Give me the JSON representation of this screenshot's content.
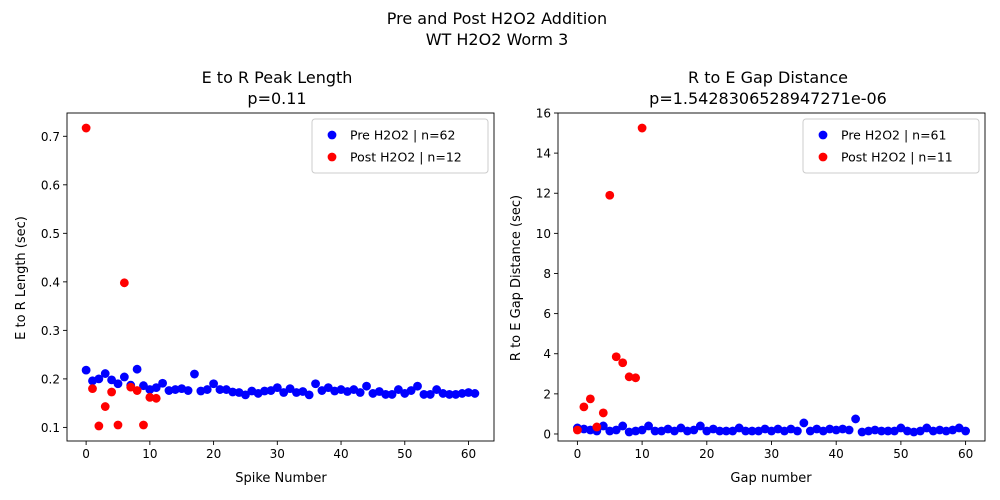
{
  "figure": {
    "suptitle_line1": "Pre and Post H2O2 Addition",
    "suptitle_line2": "WT H2O2 Worm 3"
  },
  "chart_data": [
    {
      "type": "scatter",
      "title_line1": "E to R Peak Length",
      "title_line2": "p=0.11",
      "xlabel": "Spike Number",
      "ylabel": "E to R Length (sec)",
      "xlim": [
        -3,
        64
      ],
      "ylim": [
        0.072,
        0.748
      ],
      "xticks": [
        0,
        10,
        20,
        30,
        40,
        50,
        60
      ],
      "yticks": [
        0.1,
        0.2,
        0.3,
        0.4,
        0.5,
        0.6,
        0.7
      ],
      "ytick_labels": [
        "0.1",
        "0.2",
        "0.3",
        "0.4",
        "0.5",
        "0.6",
        "0.7"
      ],
      "legend_position": "top-right",
      "grid": false,
      "series": [
        {
          "name": "Pre H2O2 | n=62",
          "color": "#0000ff",
          "x": [
            0,
            1,
            2,
            3,
            4,
            5,
            6,
            7,
            8,
            9,
            10,
            11,
            12,
            13,
            14,
            15,
            16,
            17,
            18,
            19,
            20,
            21,
            22,
            23,
            24,
            25,
            26,
            27,
            28,
            29,
            30,
            31,
            32,
            33,
            34,
            35,
            36,
            37,
            38,
            39,
            40,
            41,
            42,
            43,
            44,
            45,
            46,
            47,
            48,
            49,
            50,
            51,
            52,
            53,
            54,
            55,
            56,
            57,
            58,
            59,
            60,
            61
          ],
          "y": [
            0.218,
            0.196,
            0.2,
            0.211,
            0.198,
            0.19,
            0.204,
            0.187,
            0.22,
            0.186,
            0.178,
            0.182,
            0.191,
            0.176,
            0.178,
            0.18,
            0.176,
            0.21,
            0.175,
            0.178,
            0.19,
            0.178,
            0.178,
            0.173,
            0.172,
            0.167,
            0.175,
            0.17,
            0.175,
            0.176,
            0.182,
            0.172,
            0.18,
            0.172,
            0.174,
            0.167,
            0.19,
            0.176,
            0.182,
            0.175,
            0.178,
            0.174,
            0.178,
            0.172,
            0.185,
            0.17,
            0.174,
            0.168,
            0.168,
            0.178,
            0.17,
            0.176,
            0.185,
            0.168,
            0.168,
            0.178,
            0.17,
            0.168,
            0.168,
            0.17,
            0.172,
            0.17
          ]
        },
        {
          "name": "Post H2O2 | n=12",
          "color": "#ff0000",
          "x": [
            0,
            1,
            2,
            3,
            4,
            5,
            6,
            7,
            8,
            9,
            10,
            11
          ],
          "y": [
            0.717,
            0.18,
            0.103,
            0.143,
            0.173,
            0.105,
            0.398,
            0.183,
            0.176,
            0.105,
            0.162,
            0.16
          ]
        }
      ]
    },
    {
      "type": "scatter",
      "title_line1": "R to E Gap Distance",
      "title_line2": "p=1.5428306528947271e-06",
      "xlabel": "Gap number",
      "ylabel": "R to E Gap Distance (sec)",
      "xlim": [
        -3,
        63
      ],
      "ylim": [
        -0.35,
        16.0
      ],
      "xticks": [
        0,
        10,
        20,
        30,
        40,
        50,
        60
      ],
      "yticks": [
        0,
        2,
        4,
        6,
        8,
        10,
        12,
        14,
        16
      ],
      "ytick_labels": [
        "0",
        "2",
        "4",
        "6",
        "8",
        "10",
        "12",
        "14",
        "16"
      ],
      "legend_position": "top-right",
      "grid": false,
      "series": [
        {
          "name": "Pre H2O2 | n=61",
          "color": "#0000ff",
          "x": [
            0,
            1,
            2,
            3,
            4,
            5,
            6,
            7,
            8,
            9,
            10,
            11,
            12,
            13,
            14,
            15,
            16,
            17,
            18,
            19,
            20,
            21,
            22,
            23,
            24,
            25,
            26,
            27,
            28,
            29,
            30,
            31,
            32,
            33,
            34,
            35,
            36,
            37,
            38,
            39,
            40,
            41,
            42,
            43,
            44,
            45,
            46,
            47,
            48,
            49,
            50,
            51,
            52,
            53,
            54,
            55,
            56,
            57,
            58,
            59,
            60
          ],
          "y": [
            0.3,
            0.25,
            0.2,
            0.15,
            0.4,
            0.15,
            0.2,
            0.4,
            0.1,
            0.15,
            0.2,
            0.4,
            0.15,
            0.15,
            0.25,
            0.15,
            0.3,
            0.15,
            0.2,
            0.4,
            0.15,
            0.25,
            0.15,
            0.15,
            0.15,
            0.3,
            0.15,
            0.15,
            0.15,
            0.25,
            0.15,
            0.25,
            0.15,
            0.25,
            0.15,
            0.55,
            0.15,
            0.25,
            0.15,
            0.25,
            0.2,
            0.25,
            0.2,
            0.75,
            0.1,
            0.15,
            0.2,
            0.15,
            0.15,
            0.15,
            0.3,
            0.15,
            0.1,
            0.15,
            0.3,
            0.15,
            0.2,
            0.15,
            0.2,
            0.3,
            0.15
          ]
        },
        {
          "name": "Post H2O2 | n=11",
          "color": "#ff0000",
          "x": [
            0,
            1,
            2,
            3,
            4,
            5,
            6,
            7,
            8,
            9,
            10
          ],
          "y": [
            0.2,
            1.35,
            1.75,
            0.35,
            1.05,
            11.9,
            3.85,
            3.55,
            2.85,
            2.8,
            15.25
          ]
        }
      ]
    }
  ]
}
